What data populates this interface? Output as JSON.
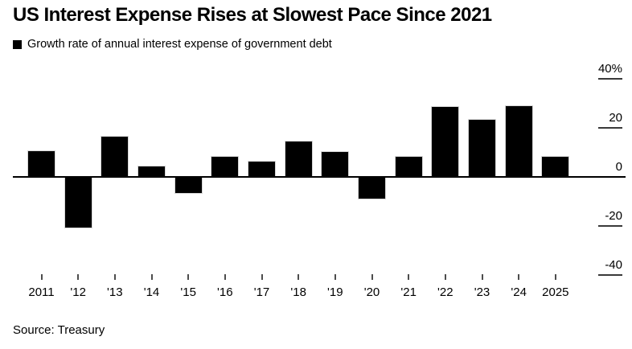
{
  "title": "US Interest Expense Rises at Slowest Pace Since 2021",
  "legend": {
    "label": "Growth rate of annual interest expense of government debt",
    "swatch_color": "#000000"
  },
  "source": "Source: Treasury",
  "colors": {
    "background": "#ffffff",
    "bar": "#000000",
    "axis": "#000000",
    "tick_mark": "#3a3a3a",
    "text": "#000000"
  },
  "chart_data": {
    "type": "bar",
    "title": "US Interest Expense Rises at Slowest Pace Since 2021",
    "series_name": "Growth rate of annual interest expense of government debt",
    "categories": [
      "2011",
      "'12",
      "'13",
      "'14",
      "'15",
      "'16",
      "'17",
      "'18",
      "'19",
      "'20",
      "'21",
      "'22",
      "'23",
      "'24",
      "2025"
    ],
    "values": [
      10.3,
      -20.9,
      16.2,
      4.0,
      -6.6,
      8.0,
      6.1,
      14.3,
      10.0,
      -9.0,
      8.1,
      28.4,
      23.2,
      28.6,
      7.9
    ],
    "unit": "%",
    "xlabel": "",
    "ylabel": "",
    "y_ticks": [
      40,
      20,
      0,
      -20,
      -40
    ],
    "y_tick_labels": [
      "40%",
      "20",
      "0",
      "-20",
      "-40"
    ],
    "ylim": [
      -46,
      42
    ],
    "grid": false,
    "legend_position": "top-left",
    "bar_color": "#000000",
    "axis_side": "right"
  }
}
